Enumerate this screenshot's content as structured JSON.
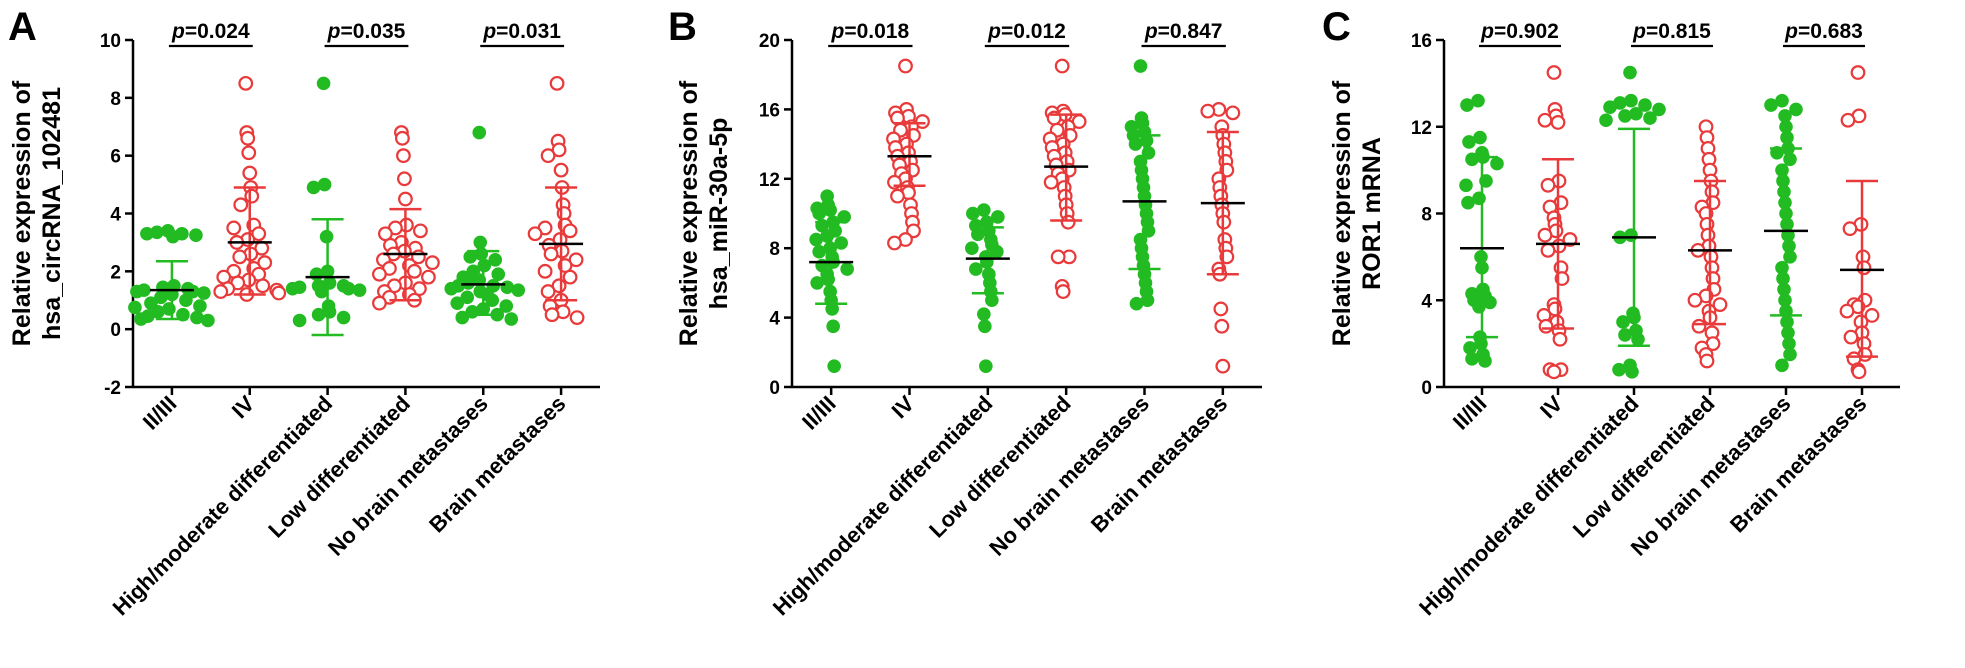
{
  "colors": {
    "group_a": "#22bb22",
    "group_b": "#e83a3a",
    "axis": "#000000"
  },
  "chart_data": [
    {
      "panel": "A",
      "type": "scatter",
      "ylabel": [
        "Relative expression of",
        "hsa_circRNA_102481"
      ],
      "ylim": [
        -2,
        10
      ],
      "yticks": [
        -2,
        0,
        2,
        4,
        6,
        8,
        10
      ],
      "categories": [
        "II/III",
        "IV",
        "High/moderate differentiated",
        "Low differentiated",
        "No brain metastases",
        "Brain metastases"
      ],
      "p_values": [
        "0.024",
        "0.035",
        "0.031"
      ],
      "groups": [
        {
          "marker": "filled",
          "mean": 1.35,
          "sd_low": 0.35,
          "sd_high": 2.35,
          "values": [
            3.4,
            3.35,
            3.3,
            3.3,
            3.25,
            3.2,
            1.5,
            1.45,
            1.4,
            1.35,
            1.3,
            1.3,
            1.25,
            1.2,
            1.1,
            1.0,
            0.9,
            0.8,
            0.75,
            0.7,
            0.6,
            0.5,
            0.45,
            0.4,
            0.35,
            0.3
          ]
        },
        {
          "marker": "open",
          "mean": 3.0,
          "sd_low": 1.2,
          "sd_high": 4.9,
          "values": [
            8.5,
            6.8,
            6.6,
            6.1,
            5.4,
            4.9,
            4.6,
            4.3,
            3.6,
            3.5,
            3.3,
            3.1,
            3.0,
            2.8,
            2.6,
            2.5,
            2.3,
            2.1,
            2.0,
            1.9,
            1.8,
            1.7,
            1.6,
            1.5,
            1.4,
            1.35,
            1.3,
            1.25,
            1.2
          ]
        },
        {
          "marker": "filled",
          "mean": 1.8,
          "sd_low": -0.2,
          "sd_high": 3.8,
          "values": [
            8.5,
            5.0,
            4.9,
            3.2,
            2.0,
            1.9,
            1.6,
            1.5,
            1.5,
            1.45,
            1.4,
            1.4,
            1.35,
            1.3,
            0.8,
            0.6,
            0.5,
            0.4,
            0.3
          ]
        },
        {
          "marker": "open",
          "mean": 2.6,
          "sd_low": 1.0,
          "sd_high": 4.15,
          "values": [
            6.8,
            6.6,
            6.0,
            5.2,
            4.5,
            3.6,
            3.5,
            3.4,
            3.3,
            3.0,
            2.9,
            2.8,
            2.7,
            2.6,
            2.5,
            2.4,
            2.3,
            2.2,
            2.1,
            2.0,
            1.9,
            1.8,
            1.6,
            1.5,
            1.4,
            1.3,
            1.2,
            1.1,
            1.0,
            0.9
          ]
        },
        {
          "marker": "filled",
          "mean": 1.55,
          "sd_low": 0.5,
          "sd_high": 2.7,
          "values": [
            6.8,
            3.0,
            2.6,
            2.5,
            2.4,
            2.2,
            2.0,
            1.9,
            1.8,
            1.7,
            1.6,
            1.5,
            1.5,
            1.45,
            1.4,
            1.35,
            1.3,
            1.2,
            1.1,
            1.0,
            0.9,
            0.8,
            0.7,
            0.6,
            0.5,
            0.4,
            0.35
          ]
        },
        {
          "marker": "open",
          "mean": 2.95,
          "sd_low": 1.0,
          "sd_high": 4.9,
          "values": [
            8.5,
            6.5,
            6.2,
            6.0,
            5.5,
            4.9,
            4.3,
            4.0,
            3.6,
            3.5,
            3.4,
            3.3,
            3.1,
            2.9,
            2.7,
            2.6,
            2.4,
            2.2,
            2.0,
            1.8,
            1.5,
            1.3,
            1.0,
            0.8,
            0.6,
            0.5,
            0.4
          ]
        }
      ]
    },
    {
      "panel": "B",
      "type": "scatter",
      "ylabel": [
        "Relative expression of",
        "hsa_miR-30a-5p"
      ],
      "ylim": [
        0,
        20
      ],
      "yticks": [
        0,
        4,
        8,
        12,
        16,
        20
      ],
      "categories": [
        "II/III",
        "IV",
        "High/moderate differentiated",
        "Low differentiated",
        "No brain metastases",
        "Brain metastases"
      ],
      "p_values": [
        "0.018",
        "0.012",
        "0.847"
      ],
      "groups": [
        {
          "marker": "filled",
          "mean": 7.2,
          "sd_low": 4.8,
          "sd_high": 9.5,
          "values": [
            11.0,
            10.5,
            10.3,
            10.2,
            10.0,
            9.8,
            9.5,
            9.3,
            9.0,
            8.7,
            8.5,
            8.3,
            8.0,
            7.8,
            7.5,
            7.2,
            7.0,
            6.8,
            6.5,
            6.2,
            6.0,
            5.5,
            5.0,
            4.5,
            3.5,
            1.2
          ]
        },
        {
          "marker": "open",
          "mean": 13.3,
          "sd_low": 11.6,
          "sd_high": 15.2,
          "values": [
            18.5,
            16.0,
            15.8,
            15.6,
            15.5,
            15.3,
            15.0,
            14.8,
            14.5,
            14.3,
            14.0,
            13.8,
            13.5,
            13.3,
            13.0,
            12.8,
            12.5,
            12.3,
            12.0,
            11.8,
            11.5,
            11.2,
            11.0,
            10.5,
            10.0,
            9.5,
            9.0,
            8.5,
            8.3
          ]
        },
        {
          "marker": "filled",
          "mean": 7.4,
          "sd_low": 5.4,
          "sd_high": 9.2,
          "values": [
            10.2,
            10.0,
            9.8,
            9.5,
            9.3,
            9.0,
            8.8,
            8.5,
            8.2,
            8.0,
            7.8,
            7.5,
            7.2,
            6.8,
            6.5,
            6.0,
            5.5,
            5.0,
            4.2,
            3.5,
            1.2
          ]
        },
        {
          "marker": "open",
          "mean": 12.7,
          "sd_low": 9.6,
          "sd_high": 15.7,
          "values": [
            18.5,
            15.9,
            15.8,
            15.7,
            15.5,
            15.3,
            15.0,
            14.8,
            14.5,
            14.3,
            14.0,
            13.8,
            13.5,
            13.3,
            13.0,
            12.8,
            12.5,
            12.3,
            12.0,
            11.8,
            11.5,
            11.0,
            10.5,
            10.0,
            9.5,
            7.5,
            7.5,
            5.8,
            5.5
          ]
        },
        {
          "marker": "filled",
          "mean": 10.7,
          "sd_low": 6.8,
          "sd_high": 14.5,
          "values": [
            18.5,
            15.5,
            15.2,
            15.0,
            14.7,
            14.5,
            14.2,
            14.0,
            13.5,
            13.0,
            12.5,
            12.0,
            11.5,
            11.0,
            10.5,
            10.0,
            9.5,
            9.0,
            8.5,
            8.0,
            7.5,
            7.0,
            6.5,
            6.0,
            5.5,
            5.0,
            4.8
          ]
        },
        {
          "marker": "open",
          "mean": 10.6,
          "sd_low": 6.5,
          "sd_high": 14.7,
          "values": [
            16.0,
            15.9,
            15.8,
            15.0,
            14.5,
            14.0,
            13.5,
            13.0,
            12.5,
            12.0,
            11.5,
            11.0,
            10.5,
            10.0,
            9.5,
            8.5,
            8.0,
            7.5,
            6.8,
            6.5,
            4.5,
            3.5,
            1.2
          ]
        }
      ]
    },
    {
      "panel": "C",
      "type": "scatter",
      "ylabel": [
        "Relative expression of",
        "ROR1 mRNA"
      ],
      "ylim": [
        0,
        16
      ],
      "yticks": [
        0,
        4,
        8,
        12,
        16
      ],
      "categories": [
        "II/III",
        "IV",
        "High/moderate differentiated",
        "Low differentiated",
        "No brain metastases",
        "Brain metastases"
      ],
      "p_values": [
        "0.902",
        "0.815",
        "0.683"
      ],
      "groups": [
        {
          "marker": "filled",
          "mean": 6.4,
          "sd_low": 2.3,
          "sd_high": 10.6,
          "values": [
            13.2,
            13.0,
            11.5,
            11.3,
            10.8,
            10.6,
            10.5,
            10.3,
            9.5,
            9.3,
            8.7,
            8.5,
            6.0,
            5.5,
            4.5,
            4.3,
            4.2,
            4.0,
            3.9,
            3.7,
            2.3,
            2.0,
            1.8,
            1.5,
            1.3,
            1.2
          ]
        },
        {
          "marker": "open",
          "mean": 6.6,
          "sd_low": 2.7,
          "sd_high": 10.5,
          "values": [
            14.5,
            12.8,
            12.5,
            12.3,
            12.2,
            9.5,
            9.3,
            8.5,
            8.3,
            7.8,
            7.5,
            7.2,
            7.0,
            6.8,
            6.5,
            6.3,
            5.5,
            5.0,
            3.8,
            3.6,
            3.3,
            3.0,
            2.8,
            2.6,
            2.2,
            0.8,
            0.8,
            0.7
          ]
        },
        {
          "marker": "filled",
          "mean": 6.9,
          "sd_low": 1.9,
          "sd_high": 11.9,
          "values": [
            14.5,
            13.2,
            13.1,
            13.0,
            12.9,
            12.8,
            12.6,
            12.5,
            12.4,
            12.3,
            7.0,
            6.9,
            3.4,
            3.2,
            3.0,
            2.6,
            2.4,
            2.2,
            1.0,
            0.8,
            0.7
          ]
        },
        {
          "marker": "open",
          "mean": 6.3,
          "sd_low": 2.9,
          "sd_high": 9.5,
          "values": [
            12.0,
            11.5,
            11.0,
            10.5,
            10.0,
            9.5,
            9.0,
            8.5,
            8.3,
            8.0,
            7.5,
            7.0,
            6.5,
            6.3,
            6.0,
            5.5,
            5.0,
            4.5,
            4.2,
            4.0,
            3.8,
            3.5,
            3.2,
            2.8,
            2.5,
            2.0,
            1.8,
            1.5,
            1.2
          ]
        },
        {
          "marker": "filled",
          "mean": 7.2,
          "sd_low": 3.3,
          "sd_high": 11.0,
          "values": [
            13.2,
            13.0,
            12.8,
            12.5,
            12.0,
            11.5,
            11.0,
            10.8,
            10.5,
            10.0,
            9.5,
            9.0,
            8.5,
            8.0,
            7.5,
            7.0,
            6.5,
            6.0,
            5.5,
            5.0,
            4.5,
            4.0,
            3.5,
            3.0,
            2.5,
            2.0,
            1.5,
            1.0
          ]
        },
        {
          "marker": "open",
          "mean": 5.4,
          "sd_low": 1.4,
          "sd_high": 9.5,
          "values": [
            14.5,
            12.5,
            12.3,
            7.5,
            7.3,
            6.0,
            5.5,
            4.0,
            3.8,
            3.7,
            3.5,
            3.3,
            3.0,
            2.5,
            2.3,
            2.0,
            1.5,
            1.3,
            0.8,
            0.7
          ]
        }
      ]
    }
  ]
}
